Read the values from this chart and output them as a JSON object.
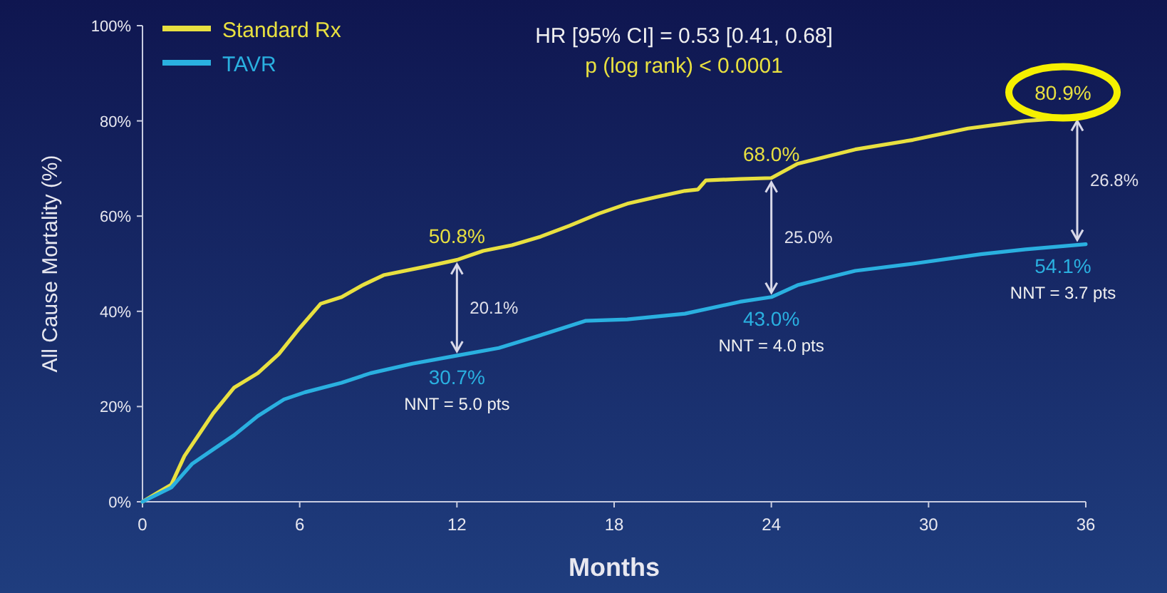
{
  "chart_data": {
    "type": "line",
    "title": "HR [95% CI] = 0.53 [0.41, 0.68]",
    "subtitle": "p (log rank) < 0.0001",
    "xlabel": "Months",
    "ylabel": "All Cause Mortality (%)",
    "xlim": [
      0,
      36
    ],
    "xticks": [
      0,
      6,
      12,
      18,
      24,
      30,
      36
    ],
    "ylim": [
      0,
      100
    ],
    "yticks": [
      {
        "value": 0,
        "label": "0%"
      },
      {
        "value": 20,
        "label": "20%"
      },
      {
        "value": 40,
        "label": "40%"
      },
      {
        "value": 60,
        "label": "60%"
      },
      {
        "value": 80,
        "label": "80%"
      },
      {
        "value": 100,
        "label": "100%"
      }
    ],
    "grid": false,
    "legend": "top left",
    "marker": "none",
    "line_style": "solid",
    "series": [
      {
        "name": "Standard Rx",
        "color": "#e8e040",
        "x": [
          0,
          0.6,
          1.1,
          1.6,
          2.7,
          3.5,
          4.4,
          5.2,
          6,
          6.8,
          7.6,
          8.4,
          9.2,
          10.9,
          12,
          13,
          14.1,
          15.2,
          16.3,
          17.4,
          18.5,
          19.6,
          20.7,
          21.2,
          21.5,
          22.8,
          24,
          25,
          27.2,
          29.4,
          31.5,
          33.7,
          36
        ],
        "values": [
          0,
          2,
          3.6,
          9.6,
          18.6,
          24,
          27,
          31,
          36.5,
          41.6,
          43,
          45.5,
          47.6,
          49.5,
          50.8,
          52.7,
          53.9,
          55.7,
          58,
          60.5,
          62.6,
          64,
          65.3,
          65.6,
          67.5,
          67.8,
          68.0,
          71,
          74,
          76,
          78.4,
          80,
          80.9
        ]
      },
      {
        "name": "TAVR",
        "color": "#2ab0e0",
        "x": [
          0,
          1.1,
          1.9,
          2.7,
          3.5,
          4.4,
          5.4,
          6.2,
          7.6,
          8.7,
          10.3,
          12,
          13.6,
          15.2,
          16.9,
          18.5,
          20.7,
          22.8,
          24,
          25,
          27.2,
          29.4,
          32,
          33.7,
          36
        ],
        "values": [
          0,
          3,
          8,
          11,
          14,
          18,
          21.5,
          23,
          25,
          27,
          29,
          30.7,
          32.3,
          35,
          38,
          38.3,
          39.5,
          42,
          43.0,
          45.5,
          48.5,
          50,
          52,
          53,
          54.1
        ]
      }
    ],
    "annotations": [
      {
        "text": "50.8%",
        "x": 12,
        "y": 50.8
      },
      {
        "text": "30.7%",
        "x": 12,
        "y": 30.7
      },
      "20.1%",
      {
        "text": "NNT = 5.0 pts",
        "x": 12,
        "y": 30.7
      },
      {
        "text": "68.0%",
        "x": 24,
        "y": 68.0
      },
      {
        "text": "43.0%",
        "x": 24,
        "y": 43.0
      },
      "25.0%",
      {
        "text": "NNT = 4.0 pts",
        "x": 24,
        "y": 43.0
      },
      {
        "text": "80.9%",
        "x": 36,
        "y": 80.9
      },
      {
        "text": "54.1%",
        "x": 36,
        "y": 54.1
      },
      "26.8%",
      {
        "text": "NNT = 3.7 pts",
        "x": 36,
        "y": 54.1
      }
    ]
  }
}
